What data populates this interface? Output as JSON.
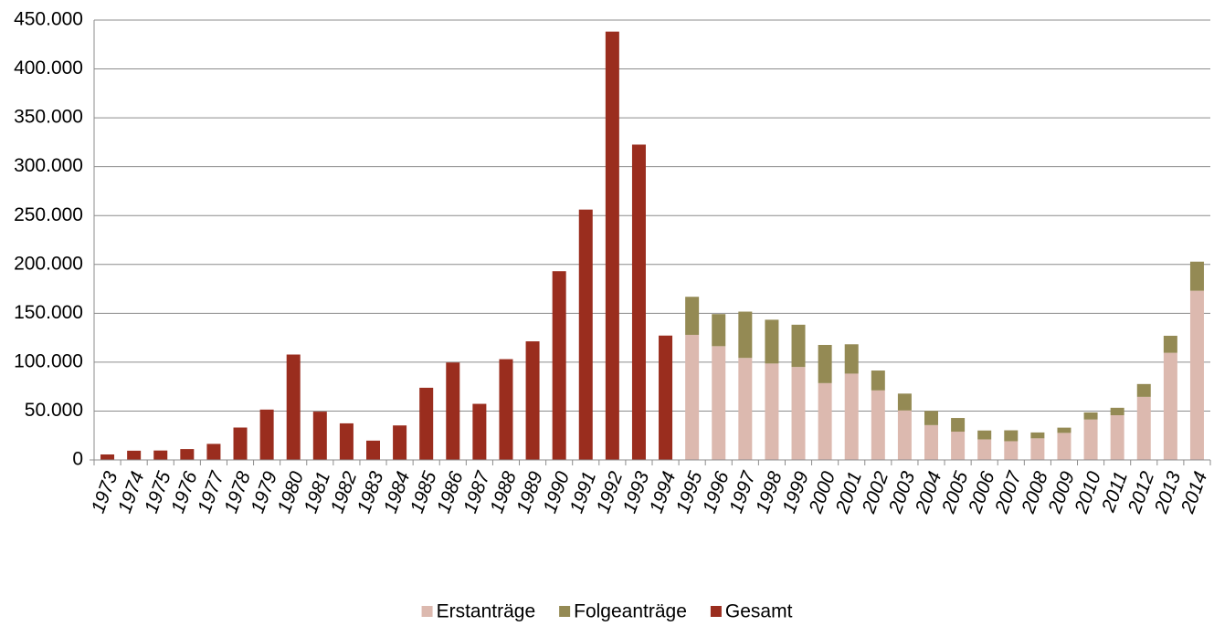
{
  "chart_data": {
    "type": "stacked_bar",
    "categories": [
      "1973",
      "1974",
      "1975",
      "1976",
      "1977",
      "1978",
      "1979",
      "1980",
      "1981",
      "1982",
      "1983",
      "1984",
      "1985",
      "1986",
      "1987",
      "1988",
      "1989",
      "1990",
      "1991",
      "1992",
      "1993",
      "1994",
      "1995",
      "1996",
      "1997",
      "1998",
      "1999",
      "2000",
      "2001",
      "2002",
      "2003",
      "2004",
      "2005",
      "2006",
      "2007",
      "2008",
      "2009",
      "2010",
      "2011",
      "2012",
      "2013",
      "2014"
    ],
    "series": [
      {
        "name": "Erstanträge",
        "color": "#dcb9af",
        "values": [
          null,
          null,
          null,
          null,
          null,
          null,
          null,
          null,
          null,
          null,
          null,
          null,
          null,
          null,
          null,
          null,
          null,
          null,
          null,
          null,
          null,
          null,
          127937,
          116367,
          104353,
          98644,
          95113,
          78564,
          88287,
          71127,
          50563,
          35607,
          28914,
          21029,
          19164,
          22085,
          27649,
          41332,
          45741,
          64539,
          109580,
          173072
        ]
      },
      {
        "name": "Folgeanträge",
        "color": "#948a54",
        "values": [
          null,
          null,
          null,
          null,
          null,
          null,
          null,
          null,
          null,
          null,
          null,
          null,
          null,
          null,
          null,
          null,
          null,
          null,
          null,
          null,
          null,
          null,
          38951,
          32826,
          47347,
          44785,
          43206,
          39084,
          30019,
          20344,
          17285,
          14545,
          13994,
          9071,
          11139,
          6009,
          5384,
          7257,
          7606,
          13112,
          17443,
          29762
        ]
      },
      {
        "name": "Gesamt",
        "color": "#9a2d1e",
        "values": [
          5595,
          9424,
          9627,
          11123,
          16410,
          33136,
          51493,
          107818,
          49391,
          37423,
          19737,
          35278,
          73832,
          99650,
          57379,
          103076,
          121318,
          193063,
          256112,
          438191,
          322599,
          127210,
          null,
          null,
          null,
          null,
          null,
          null,
          null,
          null,
          null,
          null,
          null,
          null,
          null,
          null,
          null,
          null,
          null,
          null,
          null,
          null
        ]
      }
    ],
    "ylim": [
      0,
      450000
    ],
    "yticks": [
      0,
      {
        "value": 50000,
        "label": "50.000"
      },
      {
        "value": 100000,
        "label": "100.000"
      },
      {
        "value": 150000,
        "label": "150.000"
      },
      {
        "value": 200000,
        "label": "200.000"
      },
      {
        "value": 250000,
        "label": "250.000"
      },
      {
        "value": 300000,
        "label": "300.000"
      },
      {
        "value": 350000,
        "label": "350.000"
      },
      {
        "value": 400000,
        "label": "400.000"
      },
      {
        "value": 450000,
        "label": "450.000"
      }
    ],
    "grid": true,
    "legend": "bottom"
  }
}
